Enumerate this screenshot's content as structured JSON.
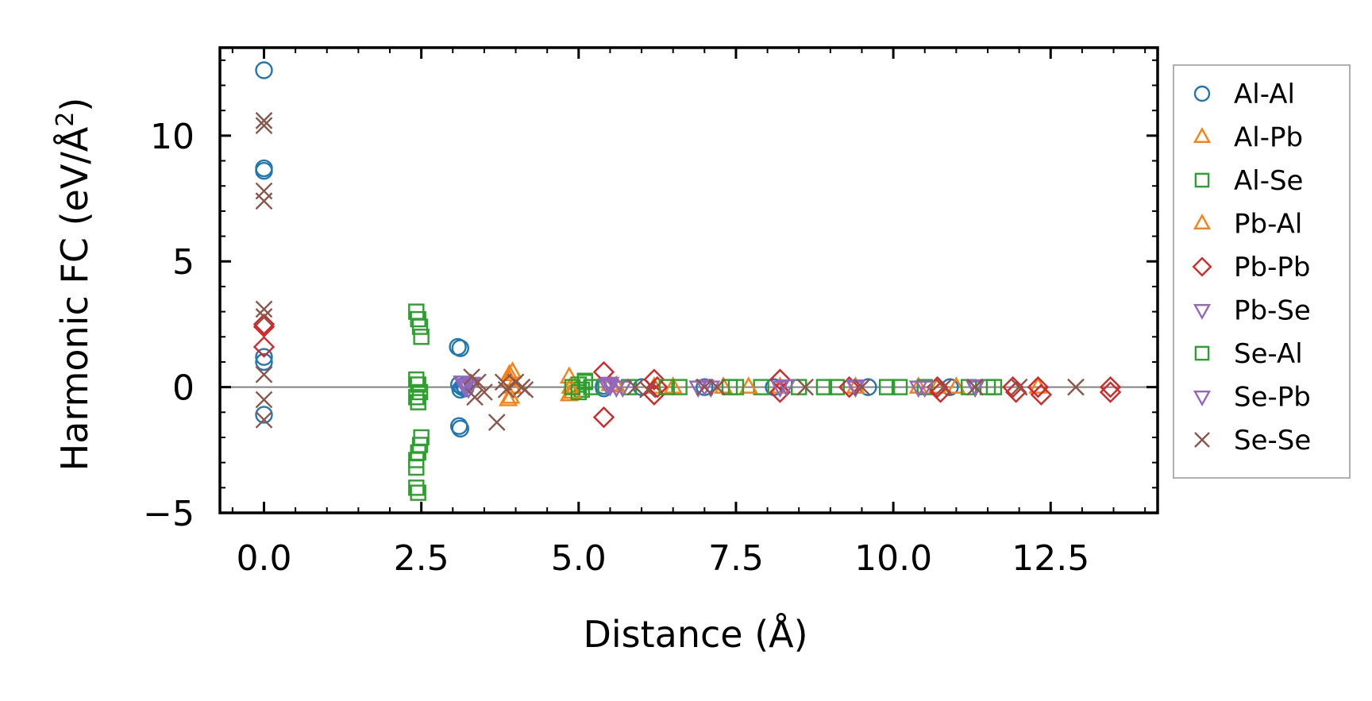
{
  "chart_data": {
    "type": "scatter",
    "xlabel": "Distance (Å)",
    "ylabel_main": "Harmonic FC (eV/Å",
    "ylabel_sup": "2",
    "ylabel_close": ")",
    "xlim": [
      -0.7,
      14.2
    ],
    "ylim": [
      -5,
      13.5
    ],
    "x_ticks": [
      0.0,
      2.5,
      5.0,
      7.5,
      10.0,
      12.5
    ],
    "x_tick_labels": [
      "0.0",
      "2.5",
      "5.0",
      "7.5",
      "10.0",
      "12.5"
    ],
    "y_ticks": [
      -5,
      0,
      5,
      10
    ],
    "y_tick_labels": [
      "−5",
      "0",
      "5",
      "10"
    ],
    "zero_line": 0,
    "legend_position": "outside-right",
    "series": [
      {
        "name": "Al-Al",
        "marker": "circle",
        "color": "#1f77b4",
        "points": [
          [
            0,
            12.6
          ],
          [
            0,
            8.7
          ],
          [
            0,
            8.6
          ],
          [
            0,
            1.2
          ],
          [
            0,
            1.0
          ],
          [
            0,
            -1.1
          ],
          [
            3.08,
            1.6
          ],
          [
            3.12,
            1.55
          ],
          [
            3.1,
            -1.55
          ],
          [
            3.12,
            -1.65
          ],
          [
            3.1,
            0.1
          ],
          [
            3.12,
            -0.1
          ],
          [
            3.15,
            0.0
          ],
          [
            3.18,
            0.05
          ],
          [
            3.2,
            -0.05
          ],
          [
            5.4,
            0.05
          ],
          [
            5.4,
            -0.05
          ],
          [
            6.0,
            0.0
          ],
          [
            7.0,
            0.0
          ],
          [
            8.1,
            0.0
          ],
          [
            9.6,
            0.0
          ],
          [
            10.9,
            0.0
          ]
        ]
      },
      {
        "name": "Al-Pb",
        "marker": "triangle-up",
        "color": "#ff7f0e",
        "points": [
          [
            3.9,
            0.5
          ],
          [
            3.9,
            0.3
          ],
          [
            3.92,
            -0.4
          ],
          [
            3.95,
            0.0
          ],
          [
            4.85,
            0.4
          ],
          [
            4.85,
            -0.3
          ],
          [
            5.5,
            0.1
          ],
          [
            6.2,
            0.0
          ],
          [
            7.3,
            0.0
          ],
          [
            8.2,
            0.0
          ],
          [
            10.4,
            0.0
          ],
          [
            10.7,
            0.0
          ],
          [
            12.3,
            0.0
          ]
        ]
      },
      {
        "name": "Al-Se",
        "marker": "square",
        "color": "#2ca02c",
        "points": [
          [
            2.42,
            3.0
          ],
          [
            2.45,
            2.7
          ],
          [
            2.48,
            2.4
          ],
          [
            2.5,
            2.0
          ],
          [
            2.42,
            0.3
          ],
          [
            2.45,
            0.1
          ],
          [
            2.48,
            -0.2
          ],
          [
            2.42,
            -0.4
          ],
          [
            2.45,
            -0.6
          ],
          [
            2.5,
            -2.0
          ],
          [
            2.48,
            -2.3
          ],
          [
            2.45,
            -2.6
          ],
          [
            2.42,
            -2.9
          ],
          [
            2.42,
            -3.2
          ],
          [
            2.42,
            -4.0
          ],
          [
            2.45,
            -4.2
          ],
          [
            5.0,
            0.1
          ],
          [
            5.1,
            0.2
          ],
          [
            5.2,
            0.0
          ],
          [
            5.05,
            -0.1
          ],
          [
            5.8,
            0.0
          ],
          [
            6.6,
            0.0
          ],
          [
            7.4,
            0.0
          ],
          [
            7.9,
            0.0
          ],
          [
            8.5,
            0.0
          ],
          [
            9.1,
            0.0
          ],
          [
            9.9,
            0.0
          ],
          [
            10.5,
            0.0
          ],
          [
            11.5,
            0.0
          ]
        ]
      },
      {
        "name": "Pb-Al",
        "marker": "triangle-up",
        "color": "#ff7f0e",
        "points": [
          [
            3.88,
            -0.5
          ],
          [
            3.95,
            0.6
          ],
          [
            4.87,
            0.0
          ],
          [
            4.9,
            -0.2
          ],
          [
            5.6,
            0.05
          ],
          [
            6.5,
            0.0
          ],
          [
            7.7,
            0.0
          ],
          [
            9.4,
            0.0
          ],
          [
            11.0,
            0.0
          ]
        ]
      },
      {
        "name": "Pb-Pb",
        "marker": "diamond",
        "color": "#d62728",
        "points": [
          [
            0,
            2.5
          ],
          [
            0,
            2.4
          ],
          [
            0,
            1.6
          ],
          [
            5.4,
            0.6
          ],
          [
            5.4,
            -1.2
          ],
          [
            6.2,
            0.3
          ],
          [
            6.2,
            -0.3
          ],
          [
            6.25,
            0.0
          ],
          [
            8.2,
            0.3
          ],
          [
            8.2,
            -0.2
          ],
          [
            9.3,
            0.0
          ],
          [
            10.7,
            0.0
          ],
          [
            10.75,
            -0.2
          ],
          [
            11.9,
            0.0
          ],
          [
            11.95,
            -0.2
          ],
          [
            12.3,
            0.0
          ],
          [
            12.35,
            -0.3
          ],
          [
            13.45,
            0.0
          ],
          [
            13.45,
            -0.2
          ]
        ]
      },
      {
        "name": "Pb-Se",
        "marker": "triangle-down",
        "color": "#9467bd",
        "points": [
          [
            3.15,
            0.2
          ],
          [
            3.2,
            0.1
          ],
          [
            3.25,
            -0.05
          ],
          [
            3.3,
            0.15
          ],
          [
            5.45,
            0.1
          ],
          [
            5.5,
            0.05
          ],
          [
            5.6,
            0.0
          ],
          [
            6.9,
            0.0
          ],
          [
            7.0,
            0.05
          ],
          [
            8.2,
            0.0
          ],
          [
            9.4,
            0.0
          ],
          [
            10.5,
            0.0
          ],
          [
            11.3,
            0.0
          ]
        ]
      },
      {
        "name": "Se-Al",
        "marker": "square",
        "color": "#2ca02c",
        "points": [
          [
            4.9,
            0.0
          ],
          [
            5.0,
            -0.2
          ],
          [
            5.1,
            0.25
          ],
          [
            6.4,
            0.0
          ],
          [
            7.5,
            0.0
          ],
          [
            8.9,
            0.0
          ],
          [
            10.1,
            0.0
          ],
          [
            11.2,
            0.0
          ],
          [
            11.6,
            0.0
          ]
        ]
      },
      {
        "name": "Se-Pb",
        "marker": "triangle-down",
        "color": "#9467bd",
        "points": [
          [
            3.2,
            0.0
          ],
          [
            3.28,
            0.1
          ],
          [
            5.5,
            0.15
          ],
          [
            5.7,
            0.0
          ],
          [
            7.1,
            0.0
          ],
          [
            8.3,
            0.05
          ],
          [
            9.4,
            0.05
          ],
          [
            10.4,
            0.0
          ],
          [
            11.3,
            0.05
          ]
        ]
      },
      {
        "name": "Se-Se",
        "marker": "x",
        "color": "#8c564b",
        "points": [
          [
            0,
            10.6
          ],
          [
            0,
            10.4
          ],
          [
            0,
            7.8
          ],
          [
            0,
            7.4
          ],
          [
            0,
            3.1
          ],
          [
            0,
            2.8
          ],
          [
            0,
            0.5
          ],
          [
            0,
            -0.5
          ],
          [
            0,
            -1.3
          ],
          [
            3.3,
            0.4
          ],
          [
            3.4,
            0.2
          ],
          [
            3.5,
            -0.2
          ],
          [
            3.35,
            -0.4
          ],
          [
            3.7,
            -1.4
          ],
          [
            3.8,
            0.2
          ],
          [
            3.85,
            -0.1
          ],
          [
            4.0,
            0.2
          ],
          [
            4.1,
            0.0
          ],
          [
            4.15,
            -0.1
          ],
          [
            5.9,
            0.0
          ],
          [
            6.1,
            -0.1
          ],
          [
            7.0,
            0.0
          ],
          [
            7.2,
            0.0
          ],
          [
            8.6,
            0.0
          ],
          [
            9.5,
            0.0
          ],
          [
            10.8,
            0.0
          ],
          [
            11.3,
            0.0
          ],
          [
            12.0,
            0.0
          ],
          [
            12.9,
            0.0
          ]
        ]
      }
    ]
  }
}
